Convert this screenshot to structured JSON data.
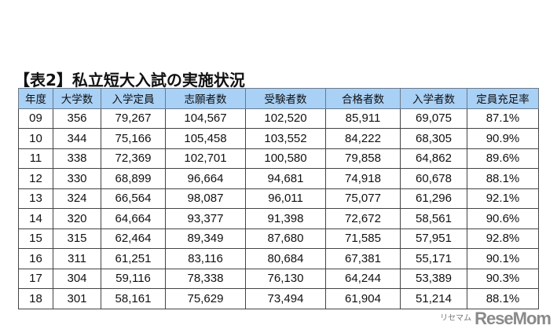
{
  "title": "【表2】私立短大入試の実施状況",
  "table": {
    "headers": [
      "年度",
      "大学数",
      "入学定員",
      "志願者数",
      "受験者数",
      "合格者数",
      "入学者数",
      "定員充足率"
    ],
    "rows": [
      [
        "09",
        "356",
        "79,267",
        "104,567",
        "102,520",
        "85,911",
        "69,075",
        "87.1%"
      ],
      [
        "10",
        "344",
        "75,166",
        "105,458",
        "103,552",
        "84,222",
        "68,305",
        "90.9%"
      ],
      [
        "11",
        "338",
        "72,369",
        "102,701",
        "100,580",
        "79,858",
        "64,862",
        "89.6%"
      ],
      [
        "12",
        "330",
        "68,899",
        "96,664",
        "94,681",
        "74,918",
        "60,678",
        "88.1%"
      ],
      [
        "13",
        "324",
        "66,564",
        "98,087",
        "96,011",
        "75,077",
        "61,296",
        "92.1%"
      ],
      [
        "14",
        "320",
        "64,664",
        "93,377",
        "91,398",
        "72,672",
        "58,561",
        "90.6%"
      ],
      [
        "15",
        "315",
        "62,464",
        "89,349",
        "87,680",
        "71,585",
        "57,951",
        "92.8%"
      ],
      [
        "16",
        "311",
        "61,251",
        "83,116",
        "80,684",
        "67,381",
        "55,171",
        "90.1%"
      ],
      [
        "17",
        "304",
        "59,116",
        "78,338",
        "76,130",
        "64,244",
        "53,389",
        "90.3%"
      ],
      [
        "18",
        "301",
        "58,161",
        "75,629",
        "73,494",
        "61,904",
        "51,214",
        "88.1%"
      ]
    ]
  },
  "watermark": {
    "text": "ReseMom",
    "kana": "リセマム"
  },
  "colors": {
    "header_bg": "#a9d0f5",
    "border": "#444444"
  }
}
